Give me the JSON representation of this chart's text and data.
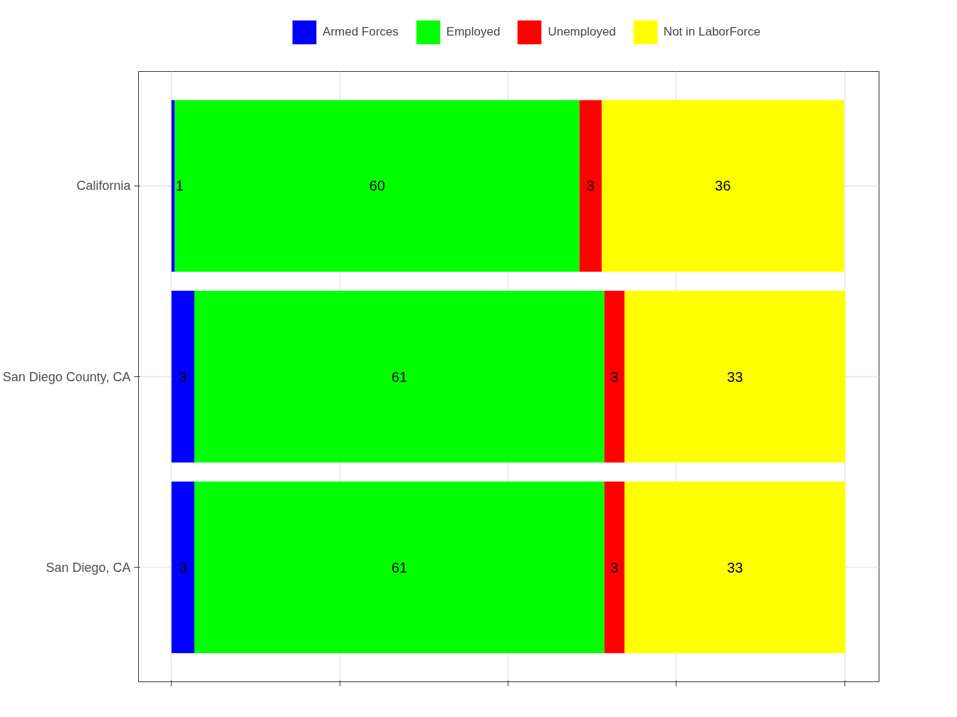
{
  "chart_data": {
    "type": "bar",
    "orientation": "horizontal",
    "stacked": true,
    "categories": [
      "California",
      "San Diego County, CA",
      "San Diego, CA"
    ],
    "series": [
      {
        "name": "Armed Forces",
        "color": "#0000ff",
        "values": [
          0.5,
          3.4,
          3.4
        ],
        "value_labels": [
          "1",
          "3",
          "3"
        ]
      },
      {
        "name": "Employed",
        "color": "#00ff00",
        "values": [
          60.1,
          60.9,
          60.9
        ],
        "value_labels": [
          "60",
          "61",
          "61"
        ]
      },
      {
        "name": "Unemployed",
        "color": "#ff0000",
        "values": [
          3.3,
          3.0,
          3.0
        ],
        "value_labels": [
          "3",
          "3",
          "3"
        ]
      },
      {
        "name": "Not in LaborForce",
        "color": "#ffff00",
        "values": [
          36.0,
          32.8,
          32.8
        ],
        "value_labels": [
          "36",
          "33",
          "33"
        ]
      }
    ],
    "xlim": [
      -4.9,
      105.1
    ],
    "xticks": [
      {
        "value": 0,
        "label": null
      },
      {
        "value": 25,
        "label": null
      },
      {
        "value": 50,
        "label": null
      },
      {
        "value": 75,
        "label": null
      },
      {
        "value": 100,
        "label": null
      }
    ],
    "tick_labels": "y",
    "grid": true,
    "legend": "top"
  }
}
